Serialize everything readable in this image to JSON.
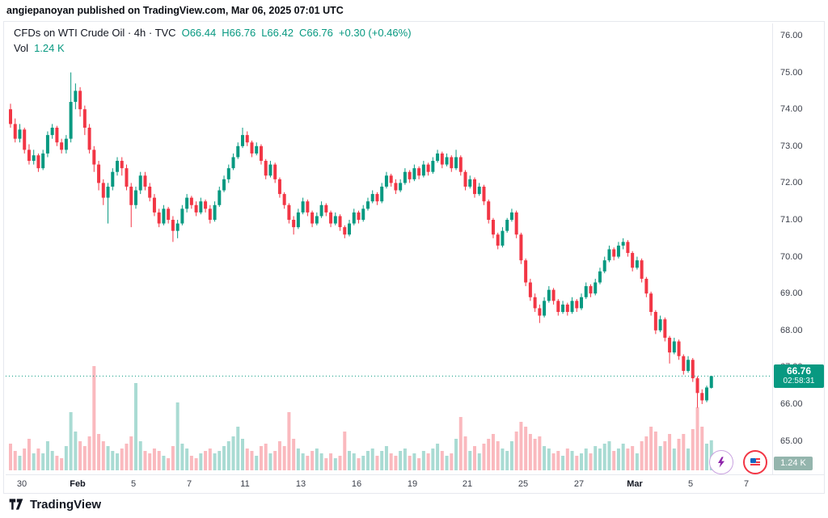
{
  "attribution": "angiepanoyan published on TradingView.com, Mar 06, 2025 07:01 UTC",
  "legend": {
    "symbol": "CFDs on WTI Crude Oil · 4h · TVC",
    "ohlc": [
      {
        "key": "O",
        "val": "66.44"
      },
      {
        "key": "H",
        "val": "66.76"
      },
      {
        "key": "L",
        "val": "66.42"
      },
      {
        "key": "C",
        "val": "66.76"
      }
    ],
    "change": "+0.30 (+0.46%)",
    "vol_label": "Vol",
    "vol_value": "1.24 K"
  },
  "badges": {
    "price": "66.76",
    "countdown": "02:58:31",
    "volume": "1.24 K"
  },
  "footer": {
    "brand": "TradingView"
  },
  "colors": {
    "up": "#089981",
    "down": "#f23645",
    "vol_up": "rgba(8,153,129,0.35)",
    "vol_down": "rgba(242,54,69,0.35)",
    "last_price_line": "#089981",
    "badge_bg": "#089981",
    "vol_badge_bg": "#94b5ad"
  },
  "chart_data": {
    "type": "candlestick",
    "title": "CFDs on WTI Crude Oil",
    "interval": "4h",
    "exchange": "TVC",
    "last": {
      "open": 66.44,
      "high": 66.76,
      "low": 66.42,
      "close": 66.76,
      "change": 0.3,
      "change_pct": 0.46,
      "volume": "1.24 K"
    },
    "price_axis_max": 76,
    "price_axis_min": 65,
    "price_labels": [
      "76.00",
      "75.00",
      "74.00",
      "73.00",
      "72.00",
      "71.00",
      "70.00",
      "69.00",
      "68.00",
      "67.00",
      "66.00",
      "65.00"
    ],
    "time_labels": [
      {
        "label": "30",
        "slot": 2.5,
        "major": false
      },
      {
        "label": "Feb",
        "slot": 14.5,
        "major": true
      },
      {
        "label": "5",
        "slot": 26.5,
        "major": false
      },
      {
        "label": "7",
        "slot": 38.5,
        "major": false
      },
      {
        "label": "11",
        "slot": 50.5,
        "major": false
      },
      {
        "label": "13",
        "slot": 62.5,
        "major": false
      },
      {
        "label": "16",
        "slot": 74.5,
        "major": false
      },
      {
        "label": "19",
        "slot": 86.5,
        "major": false
      },
      {
        "label": "21",
        "slot": 98.5,
        "major": false
      },
      {
        "label": "25",
        "slot": 110.5,
        "major": false
      },
      {
        "label": "27",
        "slot": 122.5,
        "major": false
      },
      {
        "label": "Mar",
        "slot": 134.5,
        "major": true
      },
      {
        "label": "5",
        "slot": 146.5,
        "major": false
      },
      {
        "label": "7",
        "slot": 158.5,
        "major": false
      }
    ],
    "candles": [
      [
        74.0,
        74.15,
        73.5,
        73.6,
        1.1
      ],
      [
        73.6,
        73.75,
        73.1,
        73.2,
        0.8
      ],
      [
        73.2,
        73.6,
        73.1,
        73.45,
        0.6
      ],
      [
        73.45,
        73.5,
        72.8,
        72.9,
        0.9
      ],
      [
        72.9,
        73.05,
        72.5,
        72.6,
        1.3
      ],
      [
        72.6,
        72.9,
        72.5,
        72.75,
        0.7
      ],
      [
        72.75,
        72.8,
        72.3,
        72.4,
        0.9
      ],
      [
        72.4,
        72.9,
        72.35,
        72.8,
        0.7
      ],
      [
        72.8,
        73.4,
        72.7,
        73.3,
        1.2
      ],
      [
        73.3,
        73.6,
        73.2,
        73.5,
        0.8
      ],
      [
        73.5,
        73.55,
        73.0,
        73.1,
        0.6
      ],
      [
        73.1,
        73.2,
        72.8,
        72.9,
        0.5
      ],
      [
        72.9,
        73.3,
        72.8,
        73.2,
        1.0
      ],
      [
        73.2,
        75.0,
        73.1,
        74.2,
        2.4
      ],
      [
        74.2,
        74.7,
        74.0,
        74.5,
        1.6
      ],
      [
        74.5,
        74.6,
        73.8,
        74.0,
        1.2
      ],
      [
        74.0,
        74.1,
        73.3,
        73.5,
        1.0
      ],
      [
        73.5,
        73.6,
        72.8,
        72.9,
        1.4
      ],
      [
        72.9,
        73.0,
        72.3,
        72.5,
        4.3
      ],
      [
        72.5,
        72.6,
        71.8,
        72.0,
        1.5
      ],
      [
        72.0,
        72.1,
        71.4,
        71.6,
        1.2
      ],
      [
        71.6,
        72.0,
        70.9,
        71.9,
        1.0
      ],
      [
        71.9,
        72.4,
        71.8,
        72.3,
        0.8
      ],
      [
        72.3,
        72.7,
        72.2,
        72.6,
        0.7
      ],
      [
        72.6,
        72.7,
        72.2,
        72.4,
        0.9
      ],
      [
        72.4,
        72.5,
        71.8,
        71.9,
        1.1
      ],
      [
        71.9,
        72.0,
        70.8,
        71.4,
        1.4
      ],
      [
        71.4,
        71.9,
        71.3,
        71.8,
        3.6
      ],
      [
        71.8,
        72.3,
        71.7,
        72.2,
        1.2
      ],
      [
        72.2,
        72.3,
        71.8,
        71.9,
        0.8
      ],
      [
        71.9,
        72.0,
        71.5,
        71.6,
        0.7
      ],
      [
        71.6,
        71.7,
        71.1,
        71.2,
        0.9
      ],
      [
        71.2,
        71.3,
        70.8,
        70.9,
        0.8
      ],
      [
        70.9,
        71.4,
        70.85,
        71.3,
        0.6
      ],
      [
        71.3,
        71.35,
        70.9,
        71.0,
        0.5
      ],
      [
        71.0,
        71.1,
        70.4,
        70.7,
        1.0
      ],
      [
        70.7,
        71.0,
        70.5,
        70.9,
        2.8
      ],
      [
        70.9,
        71.4,
        70.85,
        71.3,
        1.1
      ],
      [
        71.3,
        71.7,
        71.2,
        71.6,
        0.9
      ],
      [
        71.6,
        71.65,
        71.3,
        71.4,
        0.6
      ],
      [
        71.4,
        71.5,
        71.1,
        71.2,
        0.5
      ],
      [
        71.2,
        71.6,
        71.15,
        71.5,
        0.7
      ],
      [
        71.5,
        71.55,
        71.2,
        71.3,
        0.8
      ],
      [
        71.3,
        71.4,
        70.9,
        71.0,
        0.9
      ],
      [
        71.0,
        71.5,
        70.95,
        71.4,
        0.7
      ],
      [
        71.4,
        71.9,
        71.35,
        71.8,
        0.8
      ],
      [
        71.8,
        72.2,
        71.75,
        72.1,
        1.0
      ],
      [
        72.1,
        72.5,
        72.0,
        72.4,
        1.2
      ],
      [
        72.4,
        72.8,
        72.35,
        72.7,
        1.4
      ],
      [
        72.7,
        73.1,
        72.65,
        73.0,
        1.8
      ],
      [
        73.0,
        73.5,
        72.95,
        73.3,
        1.3
      ],
      [
        73.3,
        73.4,
        73.0,
        73.1,
        0.9
      ],
      [
        73.1,
        73.15,
        72.7,
        72.8,
        0.8
      ],
      [
        72.8,
        73.1,
        72.75,
        73.0,
        0.6
      ],
      [
        73.0,
        73.05,
        72.5,
        72.6,
        1.0
      ],
      [
        72.6,
        72.65,
        72.1,
        72.2,
        1.1
      ],
      [
        72.2,
        72.6,
        72.15,
        72.5,
        0.7
      ],
      [
        72.5,
        72.55,
        72.0,
        72.1,
        0.8
      ],
      [
        72.1,
        72.15,
        71.6,
        71.7,
        1.2
      ],
      [
        71.7,
        71.75,
        71.3,
        71.4,
        1.0
      ],
      [
        71.4,
        71.45,
        70.9,
        71.0,
        2.4
      ],
      [
        71.0,
        71.1,
        70.6,
        70.8,
        1.3
      ],
      [
        70.8,
        71.3,
        70.75,
        71.2,
        0.9
      ],
      [
        71.2,
        71.6,
        71.15,
        71.5,
        0.7
      ],
      [
        71.5,
        71.55,
        71.1,
        71.2,
        0.6
      ],
      [
        71.2,
        71.25,
        70.8,
        70.9,
        0.8
      ],
      [
        70.9,
        71.2,
        70.85,
        71.1,
        0.9
      ],
      [
        71.1,
        71.5,
        71.05,
        71.4,
        0.7
      ],
      [
        71.4,
        71.45,
        71.1,
        71.2,
        0.5
      ],
      [
        71.2,
        71.25,
        70.8,
        70.9,
        0.7
      ],
      [
        70.9,
        71.2,
        70.85,
        71.1,
        0.5
      ],
      [
        71.1,
        71.15,
        70.7,
        70.8,
        0.6
      ],
      [
        70.8,
        70.85,
        70.5,
        70.6,
        1.6
      ],
      [
        70.6,
        71.0,
        70.55,
        70.9,
        0.8
      ],
      [
        70.9,
        71.3,
        70.85,
        71.2,
        0.7
      ],
      [
        71.2,
        71.25,
        70.9,
        71.0,
        0.5
      ],
      [
        71.0,
        71.4,
        70.95,
        71.3,
        0.6
      ],
      [
        71.3,
        71.6,
        71.25,
        71.5,
        0.8
      ],
      [
        71.5,
        71.8,
        71.45,
        71.7,
        0.9
      ],
      [
        71.7,
        71.75,
        71.4,
        71.5,
        0.6
      ],
      [
        71.5,
        72.0,
        71.45,
        71.9,
        0.8
      ],
      [
        71.9,
        72.3,
        71.85,
        72.2,
        1.0
      ],
      [
        72.2,
        72.25,
        71.9,
        72.0,
        0.7
      ],
      [
        72.0,
        72.1,
        71.7,
        71.8,
        0.6
      ],
      [
        71.8,
        72.1,
        71.75,
        72.0,
        0.8
      ],
      [
        72.0,
        72.4,
        71.95,
        72.3,
        0.9
      ],
      [
        72.3,
        72.35,
        72.0,
        72.1,
        0.6
      ],
      [
        72.1,
        72.5,
        72.05,
        72.4,
        0.7
      ],
      [
        72.4,
        72.45,
        72.1,
        72.2,
        0.5
      ],
      [
        72.2,
        72.6,
        72.15,
        72.5,
        0.8
      ],
      [
        72.5,
        72.55,
        72.2,
        72.3,
        0.7
      ],
      [
        72.3,
        72.7,
        72.25,
        72.6,
        0.9
      ],
      [
        72.6,
        72.9,
        72.55,
        72.8,
        1.1
      ],
      [
        72.8,
        72.85,
        72.4,
        72.5,
        0.8
      ],
      [
        72.5,
        72.8,
        72.45,
        72.7,
        0.6
      ],
      [
        72.7,
        72.75,
        72.3,
        72.4,
        0.7
      ],
      [
        72.4,
        72.9,
        72.35,
        72.7,
        1.3
      ],
      [
        72.7,
        72.75,
        72.2,
        72.3,
        2.2
      ],
      [
        72.3,
        72.35,
        71.8,
        71.9,
        1.4
      ],
      [
        71.9,
        72.2,
        71.85,
        72.1,
        0.8
      ],
      [
        72.1,
        72.15,
        71.6,
        71.7,
        1.0
      ],
      [
        71.7,
        72.0,
        71.65,
        71.9,
        0.7
      ],
      [
        71.9,
        71.95,
        71.4,
        71.5,
        1.1
      ],
      [
        71.5,
        71.55,
        70.9,
        71.0,
        1.3
      ],
      [
        71.0,
        71.05,
        70.5,
        70.6,
        1.5
      ],
      [
        70.6,
        70.65,
        70.2,
        70.3,
        1.2
      ],
      [
        70.3,
        70.8,
        70.25,
        70.7,
        0.9
      ],
      [
        70.7,
        71.05,
        70.65,
        71.0,
        0.8
      ],
      [
        71.0,
        71.3,
        70.95,
        71.2,
        1.2
      ],
      [
        71.2,
        71.25,
        70.5,
        70.6,
        1.6
      ],
      [
        70.6,
        70.65,
        69.8,
        69.9,
        2.0
      ],
      [
        69.9,
        69.95,
        69.2,
        69.3,
        1.8
      ],
      [
        69.3,
        69.4,
        68.8,
        68.9,
        1.5
      ],
      [
        68.9,
        69.0,
        68.5,
        68.6,
        1.3
      ],
      [
        68.6,
        68.7,
        68.2,
        68.4,
        1.4
      ],
      [
        68.4,
        68.9,
        68.35,
        68.8,
        1.0
      ],
      [
        68.8,
        69.2,
        68.75,
        69.1,
        0.9
      ],
      [
        69.1,
        69.15,
        68.7,
        68.8,
        0.7
      ],
      [
        68.8,
        68.85,
        68.4,
        68.5,
        0.8
      ],
      [
        68.5,
        68.8,
        68.45,
        68.7,
        0.6
      ],
      [
        68.7,
        68.75,
        68.4,
        68.5,
        0.9
      ],
      [
        68.5,
        68.9,
        68.45,
        68.8,
        0.8
      ],
      [
        68.8,
        68.85,
        68.5,
        68.6,
        0.6
      ],
      [
        68.6,
        69.0,
        68.55,
        68.9,
        0.7
      ],
      [
        68.9,
        69.3,
        68.85,
        69.2,
        0.9
      ],
      [
        69.2,
        69.25,
        68.9,
        69.0,
        0.7
      ],
      [
        69.0,
        69.4,
        68.95,
        69.3,
        1.0
      ],
      [
        69.3,
        69.7,
        69.25,
        69.6,
        0.9
      ],
      [
        69.6,
        70.0,
        69.55,
        69.9,
        1.1
      ],
      [
        69.9,
        70.3,
        69.85,
        70.2,
        1.2
      ],
      [
        70.2,
        70.25,
        69.9,
        70.0,
        0.8
      ],
      [
        70.0,
        70.4,
        69.95,
        70.3,
        0.9
      ],
      [
        70.3,
        70.5,
        70.2,
        70.4,
        1.1
      ],
      [
        70.4,
        70.45,
        70.0,
        70.1,
        0.9
      ],
      [
        70.1,
        70.15,
        69.6,
        69.7,
        1.0
      ],
      [
        69.7,
        70.0,
        69.65,
        69.9,
        0.7
      ],
      [
        69.9,
        69.95,
        69.3,
        69.4,
        1.2
      ],
      [
        69.4,
        69.45,
        68.9,
        69.0,
        1.4
      ],
      [
        69.0,
        69.05,
        68.4,
        68.5,
        1.8
      ],
      [
        68.5,
        68.55,
        67.9,
        68.0,
        1.6
      ],
      [
        68.0,
        68.4,
        67.95,
        68.3,
        1.0
      ],
      [
        68.3,
        68.35,
        67.7,
        67.8,
        1.2
      ],
      [
        67.8,
        67.85,
        67.1,
        67.4,
        1.5
      ],
      [
        67.4,
        67.8,
        67.35,
        67.7,
        0.9
      ],
      [
        67.7,
        67.75,
        67.2,
        67.3,
        1.3
      ],
      [
        67.3,
        67.35,
        66.8,
        66.9,
        1.5
      ],
      [
        66.9,
        67.3,
        66.85,
        67.2,
        0.9
      ],
      [
        67.2,
        67.25,
        66.6,
        66.7,
        1.7
      ],
      [
        66.7,
        66.75,
        65.9,
        66.3,
        2.6
      ],
      [
        66.3,
        66.4,
        66.0,
        66.1,
        1.8
      ],
      [
        66.1,
        66.5,
        66.05,
        66.45,
        1.1
      ],
      [
        66.44,
        66.76,
        66.42,
        66.76,
        1.24
      ]
    ]
  }
}
